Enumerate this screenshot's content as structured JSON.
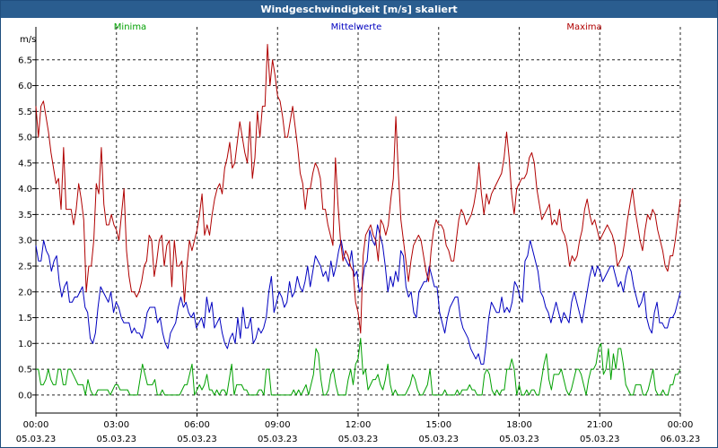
{
  "title": "Windgeschwindigkeit [m/s] skaliert",
  "chart_data": {
    "type": "line",
    "title": "Windgeschwindigkeit [m/s] skaliert",
    "ylabel": "m/s",
    "xlabel": "",
    "ylim": [
      -0.35,
      7.0
    ],
    "yticks": [
      0.0,
      0.5,
      1.0,
      1.5,
      2.0,
      2.5,
      3.0,
      3.5,
      4.0,
      4.5,
      5.0,
      5.5,
      6.0,
      6.5
    ],
    "ytick_labels": [
      "0.0",
      "0.5",
      "1.0",
      "1.5",
      "2.0",
      "2.5",
      "3.0",
      "3.5",
      "4.0",
      "4.5",
      "5.0",
      "5.5",
      "6.0",
      "6.5"
    ],
    "x_range_hours": [
      0,
      24
    ],
    "xticks": [
      {
        "time": "00:00",
        "date": "05.03.23"
      },
      {
        "time": "03:00",
        "date": "05.03.23"
      },
      {
        "time": "06:00",
        "date": "05.03.23"
      },
      {
        "time": "09:00",
        "date": "05.03.23"
      },
      {
        "time": "12:00",
        "date": "05.03.23"
      },
      {
        "time": "15:00",
        "date": "05.03.23"
      },
      {
        "time": "18:00",
        "date": "05.03.23"
      },
      {
        "time": "21:00",
        "date": "05.03.23"
      },
      {
        "time": "00:00",
        "date": "06.03.23"
      }
    ],
    "grid": true,
    "legend_placement": "top",
    "series": [
      {
        "name": "Minima",
        "color": "#00a000",
        "values": [
          0.5,
          0.5,
          0.2,
          0.2,
          0.3,
          0.5,
          0.3,
          0.2,
          0.2,
          0.5,
          0.5,
          0.2,
          0.2,
          0.5,
          0.5,
          0.4,
          0.3,
          0.2,
          0.2,
          0.2,
          0.0,
          0.3,
          0.1,
          0.0,
          0.0,
          0.1,
          0.1,
          0.1,
          0.1,
          0.1,
          0.0,
          0.1,
          0.2,
          0.2,
          0.1,
          0.1,
          0.1,
          0.1,
          0.0,
          0.0,
          0.0,
          0.0,
          0.3,
          0.6,
          0.4,
          0.2,
          0.2,
          0.2,
          0.3,
          0.0,
          0.0,
          0.1,
          0.0,
          0.0,
          0.0,
          0.0,
          0.0,
          0.0,
          0.0,
          0.1,
          0.2,
          0.2,
          0.4,
          0.6,
          0.0,
          0.1,
          0.2,
          0.1,
          0.2,
          0.4,
          0.1,
          0.1,
          0.0,
          0.1,
          0.0,
          0.1,
          0.1,
          0.0,
          0.3,
          0.6,
          0.0,
          0.2,
          0.2,
          0.2,
          0.1,
          0.1,
          0.0,
          0.0,
          0.0,
          0.0,
          0.1,
          0.1,
          0.0,
          0.5,
          0.5,
          0.0,
          0.0,
          0.0,
          0.0,
          0.0,
          0.0,
          0.0,
          0.0,
          0.0,
          0.1,
          0.0,
          0.1,
          0.0,
          0.1,
          0.2,
          0.0,
          0.2,
          0.4,
          0.9,
          0.8,
          0.3,
          0.0,
          0.0,
          0.1,
          0.4,
          0.5,
          0.2,
          0.0,
          0.0,
          0.0,
          0.0,
          0.3,
          0.5,
          0.2,
          0.6,
          0.7,
          1.1,
          0.4,
          0.5,
          0.1,
          0.2,
          0.3,
          0.3,
          0.4,
          0.2,
          0.1,
          0.3,
          0.6,
          0.2,
          0.0,
          0.1,
          0.0,
          0.0,
          0.0,
          0.0,
          0.1,
          0.2,
          0.4,
          0.3,
          0.1,
          0.0,
          0.0,
          0.1,
          0.2,
          0.5,
          0.0,
          0.0,
          0.0,
          0.0,
          0.0,
          0.1,
          0.0,
          0.0,
          0.0,
          0.0,
          0.1,
          0.0,
          0.1,
          0.1,
          0.1,
          0.2,
          0.1,
          0.1,
          0.0,
          0.0,
          0.0,
          0.4,
          0.5,
          0.4,
          0.1,
          0.0,
          0.1,
          0.0,
          0.1,
          0.1,
          0.5,
          0.5,
          0.7,
          0.5,
          0.0,
          0.2,
          0.0,
          0.0,
          0.1,
          0.0,
          0.1,
          0.1,
          0.0,
          0.0,
          0.3,
          0.6,
          0.8,
          0.3,
          0.1,
          0.4,
          0.4,
          0.4,
          0.5,
          0.3,
          0.1,
          0.0,
          0.1,
          0.3,
          0.5,
          0.5,
          0.4,
          0.2,
          0.0,
          0.3,
          0.5,
          0.5,
          0.6,
          0.9,
          1.0,
          0.4,
          0.5,
          0.9,
          0.3,
          0.8,
          0.5,
          0.9,
          0.9,
          0.6,
          0.2,
          0.1,
          0.0,
          0.0,
          0.2,
          0.2,
          0.2,
          0.0,
          0.0,
          0.1,
          0.3,
          0.5,
          0.1,
          0.0,
          0.0,
          0.1,
          0.0,
          0.0,
          0.2,
          0.2,
          0.4,
          0.4,
          0.5
        ]
      },
      {
        "name": "Mittelwerte",
        "color": "#0000c0",
        "values": [
          2.9,
          2.6,
          2.6,
          3.0,
          2.8,
          2.7,
          2.4,
          2.6,
          2.7,
          2.2,
          1.9,
          2.1,
          2.2,
          1.8,
          1.8,
          1.9,
          1.9,
          2.0,
          2.1,
          1.7,
          1.6,
          1.1,
          1.0,
          1.2,
          1.7,
          2.1,
          2.0,
          1.9,
          1.8,
          2.0,
          1.6,
          1.8,
          1.7,
          1.5,
          1.4,
          1.4,
          1.4,
          1.2,
          1.3,
          1.2,
          1.2,
          1.1,
          1.3,
          1.6,
          1.7,
          1.7,
          1.7,
          1.4,
          1.5,
          1.2,
          1.0,
          0.9,
          1.2,
          1.3,
          1.4,
          1.7,
          1.9,
          1.7,
          1.8,
          1.6,
          1.5,
          1.6,
          1.3,
          1.4,
          1.5,
          1.3,
          1.9,
          1.6,
          1.8,
          1.3,
          1.4,
          1.5,
          1.2,
          1.0,
          0.9,
          1.1,
          1.2,
          1.0,
          1.5,
          1.1,
          1.7,
          1.3,
          1.3,
          1.5,
          1.0,
          1.1,
          1.3,
          1.2,
          1.3,
          1.5,
          2.0,
          2.3,
          1.6,
          1.8,
          2.0,
          1.9,
          1.7,
          1.8,
          2.2,
          1.9,
          2.0,
          2.3,
          2.1,
          2.0,
          2.2,
          2.5,
          2.1,
          2.4,
          2.7,
          2.6,
          2.5,
          2.3,
          2.4,
          2.2,
          2.6,
          2.3,
          2.5,
          2.8,
          3.0,
          2.7,
          2.6,
          2.5,
          2.8,
          2.3,
          2.4,
          2.0,
          2.1,
          2.5,
          2.6,
          3.2,
          3.0,
          2.9,
          3.3,
          3.1,
          2.9,
          2.5,
          2.0,
          2.3,
          2.1,
          2.4,
          2.2,
          2.8,
          2.7,
          2.1,
          1.9,
          2.0,
          1.6,
          1.5,
          2.0,
          2.1,
          2.2,
          2.2,
          2.5,
          2.3,
          2.1,
          2.1,
          1.6,
          1.4,
          1.2,
          1.5,
          1.7,
          1.8,
          1.9,
          1.9,
          1.5,
          1.3,
          1.2,
          1.1,
          0.9,
          0.8,
          0.7,
          0.8,
          0.6,
          0.6,
          1.0,
          1.5,
          1.8,
          1.7,
          1.6,
          1.6,
          1.9,
          1.6,
          1.7,
          1.6,
          1.8,
          2.2,
          2.1,
          1.9,
          1.8,
          2.6,
          2.7,
          3.0,
          2.8,
          2.6,
          2.4,
          2.0,
          1.9,
          1.7,
          1.6,
          1.4,
          1.6,
          1.8,
          1.6,
          1.4,
          1.6,
          1.5,
          1.4,
          1.8,
          2.0,
          1.8,
          1.6,
          1.4,
          1.7,
          2.0,
          2.3,
          2.5,
          2.3,
          2.5,
          2.4,
          2.2,
          2.3,
          2.4,
          2.5,
          2.5,
          2.3,
          2.1,
          2.2,
          2.0,
          2.3,
          2.5,
          2.4,
          2.1,
          1.9,
          1.7,
          1.8,
          2.0,
          1.5,
          1.3,
          1.2,
          1.6,
          1.8,
          1.4,
          1.4,
          1.3,
          1.3,
          1.5,
          1.5,
          1.6,
          1.8,
          2.0
        ]
      },
      {
        "name": "Maxima",
        "color": "#b00000",
        "values": [
          5.6,
          5.0,
          5.6,
          5.7,
          5.4,
          5.1,
          4.7,
          4.4,
          4.1,
          4.2,
          3.6,
          4.8,
          3.6,
          3.6,
          3.6,
          3.3,
          3.6,
          4.1,
          3.8,
          3.4,
          2.0,
          2.5,
          2.5,
          3.0,
          4.1,
          3.9,
          4.8,
          3.7,
          3.3,
          3.3,
          3.5,
          3.3,
          3.2,
          3.0,
          3.5,
          4.0,
          2.8,
          2.3,
          2.0,
          2.0,
          1.9,
          2.0,
          2.2,
          2.5,
          2.6,
          3.1,
          3.0,
          2.3,
          2.6,
          3.0,
          3.1,
          2.5,
          2.9,
          3.0,
          2.1,
          3.0,
          2.5,
          2.5,
          2.6,
          1.8,
          2.5,
          3.0,
          2.8,
          3.0,
          3.2,
          3.5,
          3.9,
          3.1,
          3.3,
          3.1,
          3.5,
          3.8,
          4.0,
          4.1,
          3.9,
          4.4,
          4.6,
          4.9,
          4.4,
          4.5,
          4.9,
          5.3,
          5.0,
          4.7,
          4.5,
          5.3,
          4.2,
          4.6,
          5.5,
          5.0,
          5.6,
          5.6,
          6.8,
          6.0,
          6.5,
          6.2,
          5.8,
          5.7,
          5.4,
          5.0,
          5.0,
          5.3,
          5.6,
          5.2,
          4.8,
          4.3,
          4.1,
          3.6,
          4.0,
          4.0,
          4.3,
          4.5,
          4.4,
          4.2,
          3.6,
          3.6,
          3.3,
          3.1,
          2.9,
          4.6,
          3.7,
          3.0,
          2.6,
          2.8,
          2.7,
          2.5,
          2.4,
          1.8,
          1.6,
          1.2,
          2.7,
          3.1,
          3.2,
          3.3,
          3.1,
          3.0,
          2.6,
          3.4,
          3.3,
          3.1,
          3.3,
          3.8,
          4.2,
          5.4,
          4.3,
          3.4,
          3.0,
          2.6,
          2.2,
          2.6,
          2.9,
          3.0,
          3.1,
          3.0,
          2.7,
          2.4,
          2.2,
          2.8,
          3.2,
          3.4,
          3.3,
          3.3,
          3.2,
          2.9,
          2.8,
          2.6,
          2.6,
          3.0,
          3.4,
          3.6,
          3.5,
          3.3,
          3.4,
          3.5,
          3.7,
          4.0,
          4.5,
          3.9,
          3.5,
          3.9,
          3.7,
          3.9,
          4.0,
          4.1,
          4.2,
          4.3,
          4.6,
          5.1,
          4.6,
          3.9,
          3.5,
          4.0,
          4.1,
          4.2,
          4.2,
          4.3,
          4.6,
          4.7,
          4.5,
          4.0,
          3.7,
          3.4,
          3.5,
          3.6,
          3.7,
          3.3,
          3.4,
          3.3,
          3.6,
          3.2,
          3.1,
          2.9,
          2.5,
          2.7,
          2.6,
          2.7,
          3.0,
          3.2,
          3.6,
          3.8,
          3.5,
          3.3,
          3.4,
          3.2,
          3.0,
          3.1,
          3.2,
          3.3,
          3.2,
          3.1,
          2.9,
          2.5,
          2.6,
          2.7,
          3.0,
          3.4,
          3.7,
          4.0,
          3.6,
          3.3,
          3.0,
          2.8,
          3.2,
          3.5,
          3.4,
          3.6,
          3.5,
          3.2,
          3.0,
          2.8,
          2.5,
          2.4,
          2.7,
          2.7,
          3.0,
          3.4,
          3.8
        ]
      }
    ]
  }
}
